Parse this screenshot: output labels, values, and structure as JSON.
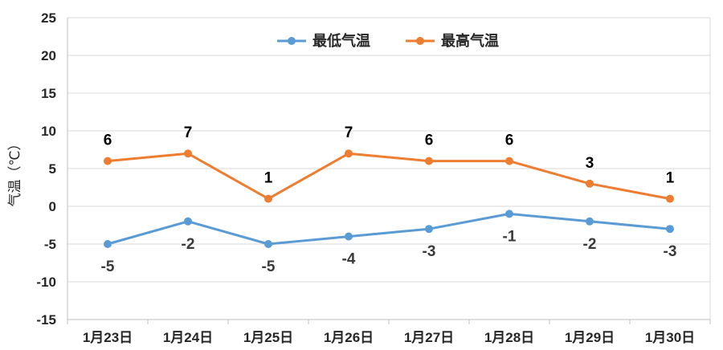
{
  "chart_data": {
    "type": "line",
    "categories": [
      "1月23日",
      "1月24日",
      "1月25日",
      "1月26日",
      "1月27日",
      "1月28日",
      "1月29日",
      "1月30日"
    ],
    "series": [
      {
        "name": "最低气温",
        "values": [
          -5,
          -2,
          -5,
          -4,
          -3,
          -1,
          -2,
          -3
        ],
        "color": "#5b9bd5"
      },
      {
        "name": "最高气温",
        "values": [
          6,
          7,
          1,
          7,
          6,
          6,
          3,
          1
        ],
        "color": "#ed7d31"
      }
    ],
    "ylabel": "气温（℃）",
    "xlabel": "",
    "ylim": [
      -15,
      25
    ],
    "yticks": [
      -15,
      -10,
      -5,
      0,
      5,
      10,
      15,
      20,
      25
    ],
    "grid": true,
    "legend_position": "top-center",
    "data_labels": true
  }
}
